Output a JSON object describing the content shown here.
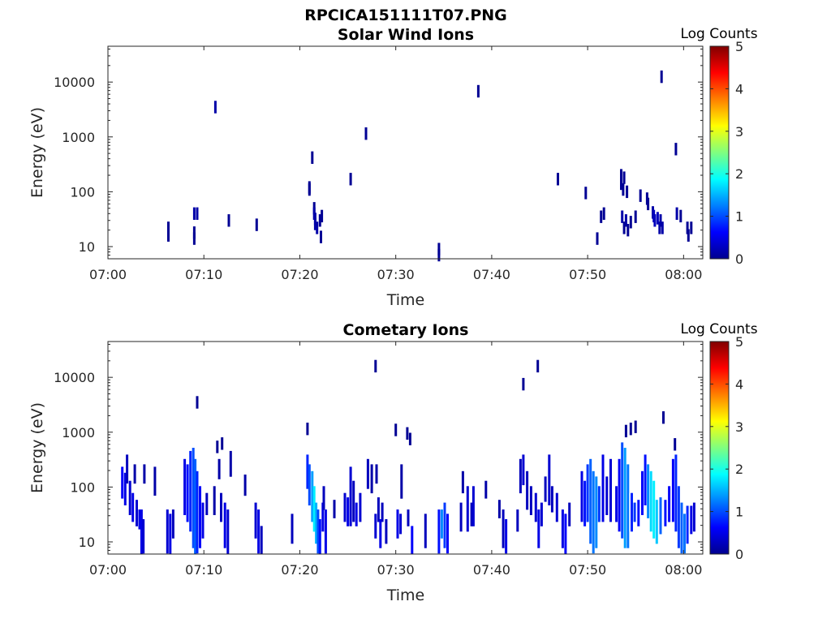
{
  "figure_title": "RPCICA151111T07.PNG",
  "chart_data": [
    {
      "type": "heatmap",
      "title": "Solar Wind Ions",
      "xlabel": "Time",
      "ylabel": "Energy (eV)",
      "x_tick_labels": [
        "07:00",
        "07:10",
        "07:20",
        "07:30",
        "07:40",
        "07:50",
        "08:00"
      ],
      "x_range_minutes": [
        0,
        62
      ],
      "y_scale": "log",
      "y_range": [
        6,
        45000
      ],
      "y_tick_labels": [
        "10",
        "100",
        "1000",
        "10000"
      ],
      "colorbar": {
        "title": "Log Counts",
        "range": [
          0,
          5
        ],
        "tick_labels": [
          "0",
          "1",
          "2",
          "3",
          "4",
          "5"
        ],
        "colormap": "jet"
      },
      "cells": [
        [
          6.3,
          16,
          0.1
        ],
        [
          6.3,
          19,
          0.1
        ],
        [
          6.3,
          22,
          0.1
        ],
        [
          9.0,
          40,
          0.2
        ],
        [
          9.3,
          40,
          0.2
        ],
        [
          9.0,
          14,
          0.1
        ],
        [
          9.0,
          18,
          0.1
        ],
        [
          11.2,
          3500,
          0.2
        ],
        [
          12.6,
          30,
          0.1
        ],
        [
          15.5,
          25,
          0.1
        ],
        [
          21.0,
          110,
          0.1
        ],
        [
          21.0,
          120,
          0.1
        ],
        [
          21.3,
          420,
          0.1
        ],
        [
          21.5,
          50,
          0.1
        ],
        [
          21.5,
          40,
          0.2
        ],
        [
          21.6,
          32,
          0.2
        ],
        [
          21.6,
          26,
          0.2
        ],
        [
          21.8,
          22,
          0.2
        ],
        [
          22.1,
          30,
          0.1
        ],
        [
          22.3,
          36,
          0.1
        ],
        [
          22.2,
          15,
          0.1
        ],
        [
          25.3,
          170,
          0.1
        ],
        [
          26.9,
          1150,
          0.1
        ],
        [
          34.5,
          7,
          0.1
        ],
        [
          34.5,
          9,
          0.1
        ],
        [
          38.6,
          6800,
          0.1
        ],
        [
          46.9,
          170,
          0.1
        ],
        [
          49.8,
          95,
          0.1
        ],
        [
          51.0,
          14,
          0.1
        ],
        [
          51.4,
          35,
          0.1
        ],
        [
          51.7,
          40,
          0.1
        ],
        [
          53.5,
          200,
          0.1
        ],
        [
          53.8,
          180,
          0.1
        ],
        [
          53.5,
          140,
          0.1
        ],
        [
          53.7,
          110,
          0.1
        ],
        [
          54.1,
          100,
          0.1
        ],
        [
          53.6,
          35,
          0.2
        ],
        [
          54.0,
          30,
          0.2
        ],
        [
          53.8,
          22,
          0.1
        ],
        [
          54.2,
          20,
          0.1
        ],
        [
          54.5,
          28,
          0.1
        ],
        [
          55.0,
          35,
          0.1
        ],
        [
          55.5,
          85,
          0.1
        ],
        [
          56.2,
          75,
          0.1
        ],
        [
          56.3,
          60,
          0.1
        ],
        [
          56.8,
          42,
          0.2
        ],
        [
          56.9,
          36,
          0.3
        ],
        [
          57.0,
          30,
          0.3
        ],
        [
          57.3,
          33,
          0.3
        ],
        [
          57.6,
          30,
          0.2
        ],
        [
          57.5,
          22,
          0.2
        ],
        [
          57.8,
          22,
          0.2
        ],
        [
          57.7,
          12500,
          0.1
        ],
        [
          59.2,
          600,
          0.1
        ],
        [
          59.3,
          40,
          0.2
        ],
        [
          59.7,
          36,
          0.1
        ],
        [
          60.4,
          22,
          0.1
        ],
        [
          60.8,
          22,
          0.1
        ],
        [
          60.5,
          16,
          0.1
        ]
      ]
    },
    {
      "type": "heatmap",
      "title": "Cometary Ions",
      "xlabel": "Time",
      "ylabel": "Energy (eV)",
      "x_tick_labels": [
        "07:00",
        "07:10",
        "07:20",
        "07:30",
        "07:40",
        "07:50",
        "08:00"
      ],
      "x_range_minutes": [
        0,
        62
      ],
      "y_scale": "log",
      "y_range": [
        6,
        45000
      ],
      "y_tick_labels": [
        "10",
        "100",
        "1000",
        "10000"
      ],
      "colorbar": {
        "title": "Log Counts",
        "range": [
          0,
          5
        ],
        "tick_labels": [
          "0",
          "1",
          "2",
          "3",
          "4",
          "5"
        ],
        "colormap": "jet"
      },
      "cells": [
        [
          9.3,
          3500,
          0.1
        ],
        [
          27.9,
          16000,
          0.1
        ],
        [
          20.8,
          1150,
          0.1
        ],
        [
          30.0,
          1100,
          0.1
        ],
        [
          31.2,
          950,
          0.1
        ],
        [
          31.5,
          750,
          0.1
        ],
        [
          43.3,
          7500,
          0.1
        ],
        [
          44.8,
          16000,
          0.1
        ],
        [
          54.0,
          1050,
          0.1
        ],
        [
          54.5,
          1150,
          0.1
        ],
        [
          55.0,
          1250,
          0.1
        ],
        [
          57.9,
          1850,
          0.1
        ],
        [
          11.9,
          620,
          0.1
        ],
        [
          11.4,
          540,
          0.1
        ],
        [
          59.1,
          600,
          0.1
        ]
      ],
      "columns": [
        [
          1.5,
          80,
          180,
          0.6
        ],
        [
          1.8,
          60,
          140,
          0.5
        ],
        [
          2.3,
          40,
          100,
          0.4
        ],
        [
          2.6,
          30,
          60,
          0.5
        ],
        [
          3.0,
          25,
          45,
          0.4
        ],
        [
          3.3,
          22,
          30,
          0.5
        ],
        [
          3.5,
          6,
          30,
          0.5
        ],
        [
          3.7,
          8,
          20,
          0.4
        ],
        [
          2.0,
          150,
          300,
          0.3
        ],
        [
          2.8,
          150,
          200,
          0.2
        ],
        [
          3.8,
          150,
          200,
          0.2
        ],
        [
          4.9,
          90,
          180,
          0.2
        ],
        [
          6.2,
          8,
          30,
          0.4
        ],
        [
          6.5,
          6,
          25,
          0.5
        ],
        [
          6.8,
          15,
          30,
          0.3
        ],
        [
          8.0,
          40,
          250,
          0.5
        ],
        [
          8.3,
          30,
          200,
          0.7
        ],
        [
          8.6,
          20,
          350,
          0.8
        ],
        [
          8.9,
          10,
          400,
          1.0
        ],
        [
          9.1,
          6,
          250,
          1.1
        ],
        [
          9.3,
          8,
          150,
          0.8
        ],
        [
          9.6,
          10,
          80,
          0.6
        ],
        [
          9.9,
          15,
          40,
          0.5
        ],
        [
          10.3,
          40,
          60,
          0.3
        ],
        [
          11.1,
          40,
          80,
          0.2
        ],
        [
          11.6,
          180,
          250,
          0.2
        ],
        [
          11.8,
          30,
          60,
          0.3
        ],
        [
          12.2,
          10,
          40,
          0.5
        ],
        [
          12.5,
          6,
          30,
          0.4
        ],
        [
          12.8,
          200,
          350,
          0.2
        ],
        [
          14.3,
          90,
          130,
          0.2
        ],
        [
          15.4,
          15,
          40,
          0.4
        ],
        [
          15.7,
          8,
          30,
          0.5
        ],
        [
          16.0,
          6,
          15,
          0.3
        ],
        [
          19.2,
          12,
          25,
          0.3
        ],
        [
          20.8,
          120,
          300,
          0.8
        ],
        [
          21.0,
          60,
          200,
          1.0
        ],
        [
          21.3,
          30,
          150,
          1.4
        ],
        [
          21.5,
          20,
          80,
          1.8
        ],
        [
          21.7,
          12,
          40,
          1.5
        ],
        [
          21.9,
          8,
          30,
          1.0
        ],
        [
          22.1,
          6,
          20,
          0.7
        ],
        [
          22.4,
          20,
          40,
          0.5
        ],
        [
          22.7,
          8,
          30,
          0.5
        ],
        [
          22.5,
          50,
          80,
          0.3
        ],
        [
          23.6,
          35,
          45,
          0.2
        ],
        [
          24.7,
          30,
          60,
          0.4
        ],
        [
          25.0,
          25,
          50,
          0.5
        ],
        [
          25.3,
          25,
          180,
          0.4
        ],
        [
          25.6,
          30,
          100,
          0.3
        ],
        [
          25.9,
          25,
          40,
          0.5
        ],
        [
          26.3,
          30,
          60,
          0.4
        ],
        [
          27.1,
          120,
          250,
          0.3
        ],
        [
          27.5,
          100,
          200,
          0.2
        ],
        [
          28.0,
          150,
          200,
          0.2
        ],
        [
          28.2,
          30,
          50,
          0.3
        ],
        [
          28.6,
          30,
          40,
          0.3
        ],
        [
          27.9,
          15,
          25,
          0.4
        ],
        [
          28.4,
          10,
          20,
          0.5
        ],
        [
          29.0,
          12,
          20,
          0.3
        ],
        [
          30.2,
          15,
          30,
          0.5
        ],
        [
          30.5,
          18,
          25,
          0.4
        ],
        [
          30.6,
          80,
          200,
          0.2
        ],
        [
          31.3,
          25,
          30,
          0.3
        ],
        [
          31.7,
          6,
          15,
          0.6
        ],
        [
          33.1,
          10,
          25,
          0.3
        ],
        [
          34.5,
          8,
          30,
          0.7
        ],
        [
          34.8,
          15,
          30,
          1.3
        ],
        [
          35.1,
          10,
          40,
          0.9
        ],
        [
          35.4,
          8,
          25,
          0.6
        ],
        [
          36.8,
          20,
          40,
          0.3
        ],
        [
          37.0,
          100,
          150,
          0.2
        ],
        [
          37.5,
          20,
          80,
          0.4
        ],
        [
          37.9,
          25,
          40,
          0.3
        ],
        [
          38.1,
          25,
          80,
          0.4
        ],
        [
          39.4,
          80,
          100,
          0.2
        ],
        [
          40.8,
          35,
          45,
          0.2
        ],
        [
          41.2,
          10,
          30,
          0.3
        ],
        [
          41.5,
          8,
          20,
          0.5
        ],
        [
          42.7,
          20,
          30,
          0.3
        ],
        [
          43.0,
          100,
          250,
          0.3
        ],
        [
          43.3,
          140,
          300,
          0.4
        ],
        [
          43.7,
          50,
          150,
          0.3
        ],
        [
          44.1,
          40,
          80,
          0.3
        ],
        [
          44.6,
          30,
          60,
          0.4
        ],
        [
          44.9,
          10,
          30,
          0.5
        ],
        [
          45.2,
          25,
          40,
          0.4
        ],
        [
          45.6,
          70,
          120,
          0.3
        ],
        [
          46.0,
          60,
          300,
          0.4
        ],
        [
          46.3,
          45,
          80,
          0.3
        ],
        [
          46.8,
          30,
          60,
          0.4
        ],
        [
          47.4,
          10,
          30,
          0.5
        ],
        [
          47.7,
          6,
          25,
          0.6
        ],
        [
          48.1,
          25,
          40,
          0.3
        ],
        [
          49.4,
          30,
          150,
          0.5
        ],
        [
          49.7,
          25,
          100,
          0.7
        ],
        [
          50.0,
          30,
          200,
          0.9
        ],
        [
          50.3,
          12,
          250,
          1.1
        ],
        [
          50.6,
          8,
          150,
          1.2
        ],
        [
          50.9,
          10,
          120,
          1.3
        ],
        [
          51.2,
          30,
          80,
          0.9
        ],
        [
          51.6,
          30,
          300,
          0.5
        ],
        [
          52.0,
          40,
          120,
          0.4
        ],
        [
          52.4,
          30,
          250,
          0.4
        ],
        [
          53.0,
          30,
          80,
          0.5
        ],
        [
          53.3,
          20,
          250,
          0.6
        ],
        [
          53.6,
          15,
          500,
          1.0
        ],
        [
          53.9,
          10,
          400,
          1.4
        ],
        [
          54.2,
          10,
          200,
          1.2
        ],
        [
          54.6,
          20,
          60,
          0.8
        ],
        [
          54.9,
          30,
          40,
          0.9
        ],
        [
          55.3,
          25,
          45,
          0.7
        ],
        [
          55.7,
          40,
          150,
          0.6
        ],
        [
          56.0,
          60,
          300,
          0.7
        ],
        [
          56.3,
          35,
          200,
          1.3
        ],
        [
          56.6,
          20,
          150,
          1.7
        ],
        [
          56.9,
          15,
          100,
          1.8
        ],
        [
          57.2,
          12,
          45,
          1.6
        ],
        [
          57.6,
          18,
          50,
          1.1
        ],
        [
          58.1,
          25,
          45,
          0.7
        ],
        [
          58.5,
          30,
          80,
          0.6
        ],
        [
          58.9,
          30,
          250,
          0.6
        ],
        [
          59.2,
          20,
          300,
          0.8
        ],
        [
          59.5,
          10,
          80,
          0.9
        ],
        [
          59.8,
          8,
          40,
          1.1
        ],
        [
          60.1,
          8,
          25,
          1.2
        ],
        [
          60.4,
          12,
          35,
          0.8
        ],
        [
          60.8,
          18,
          35,
          0.5
        ],
        [
          61.1,
          20,
          40,
          0.4
        ]
      ]
    }
  ]
}
